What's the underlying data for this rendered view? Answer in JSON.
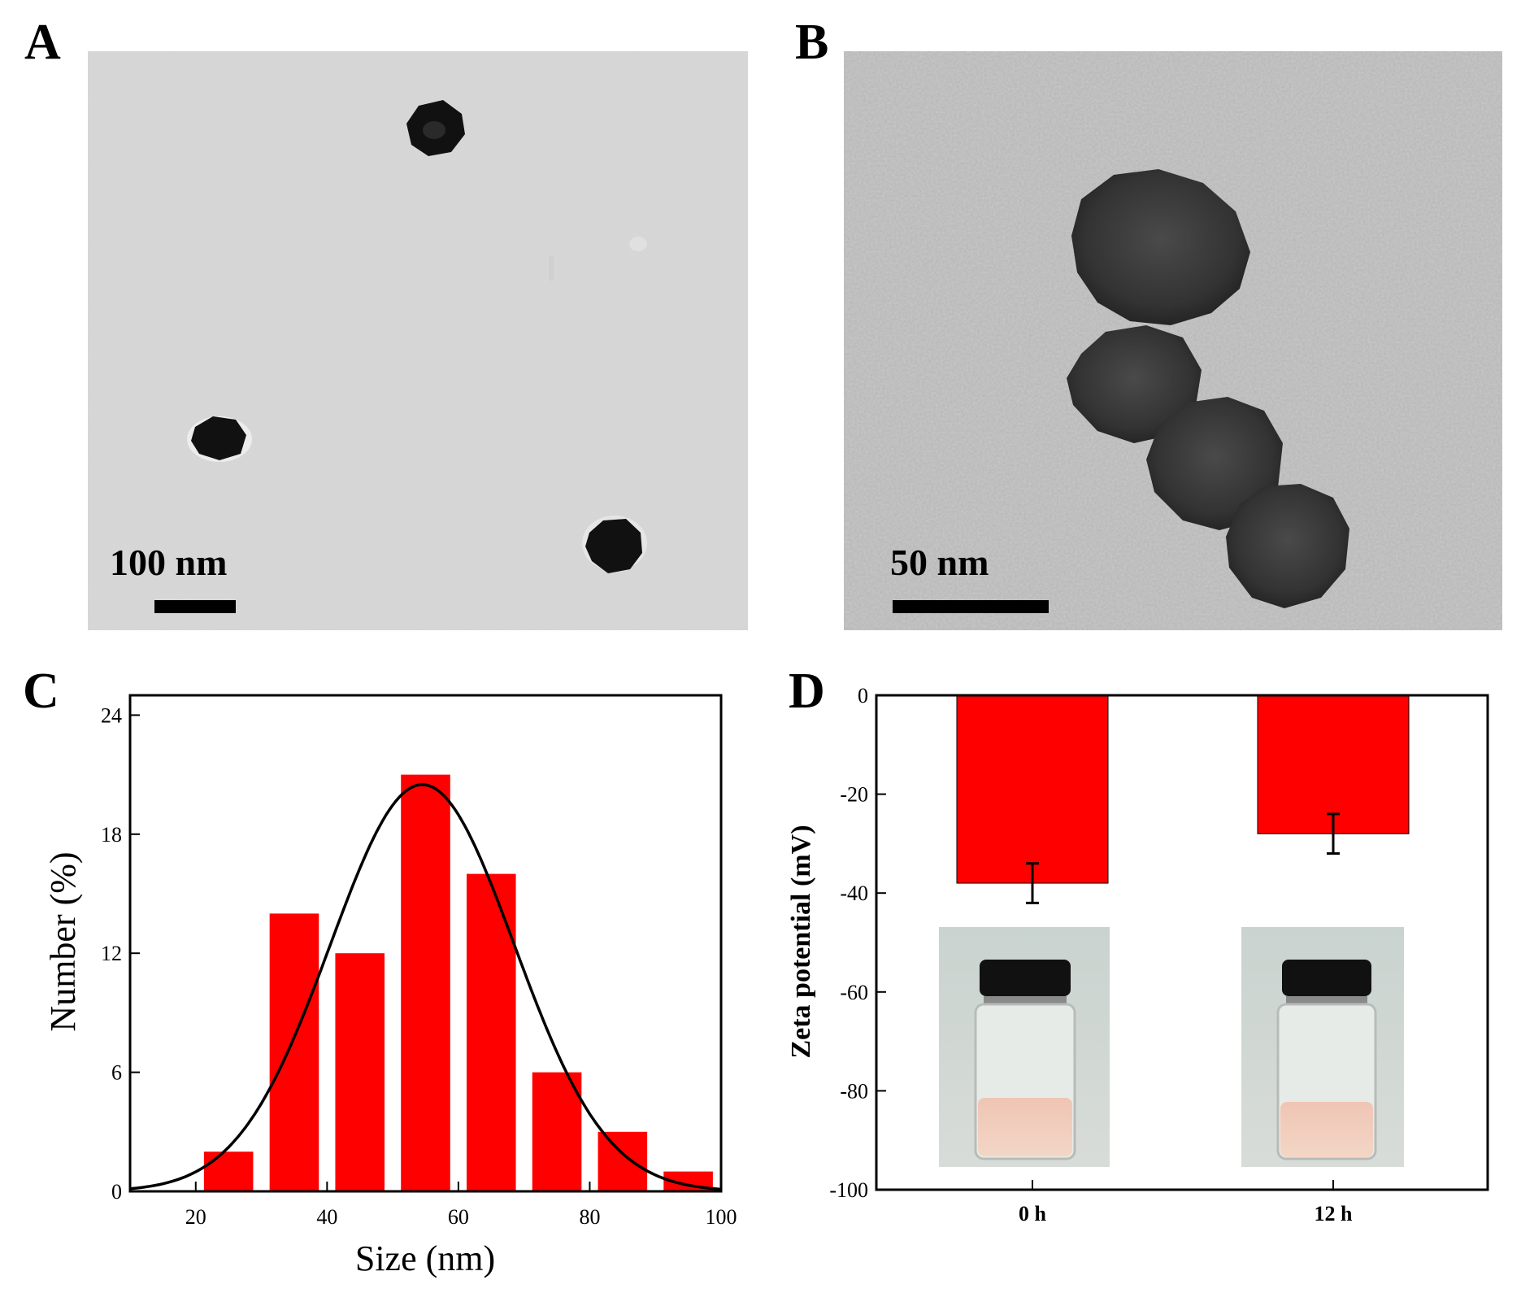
{
  "panels": {
    "A": {
      "letter": "A",
      "scale_bar_label": "100 nm"
    },
    "B": {
      "letter": "B",
      "scale_bar_label": "50 nm"
    },
    "C": {
      "letter": "C"
    },
    "D": {
      "letter": "D"
    }
  },
  "colors": {
    "bar_fill": "#ff0000",
    "curve": "#000000",
    "tem_background_A": "#d8d8d8",
    "tem_background_B": "#c4c4c4"
  },
  "chart_data": [
    {
      "panel": "C",
      "type": "bar",
      "x": [
        25,
        35,
        45,
        55,
        65,
        75,
        85,
        95
      ],
      "values": [
        2,
        14,
        12,
        21,
        16,
        6,
        3,
        1
      ],
      "bin_width": 7.5,
      "fit_curve": {
        "type": "gaussian",
        "mean": 54.5,
        "sigma": 14,
        "peak": 20.5
      },
      "xlabel": "Size (nm)",
      "ylabel": "Number (%)",
      "xlim": [
        10,
        100
      ],
      "ylim": [
        0,
        25
      ],
      "xticks": [
        "20",
        "40",
        "60",
        "80",
        "100"
      ],
      "yticks": [
        "0",
        "6",
        "12",
        "18",
        "24"
      ]
    },
    {
      "panel": "D",
      "type": "bar",
      "categories": [
        "0 h",
        "12 h"
      ],
      "values": [
        -38,
        -28
      ],
      "errors": [
        4,
        4
      ],
      "ylabel": "Zeta potential (mV)",
      "ylim": [
        -100,
        0
      ],
      "yticks": [
        "0",
        "-20",
        "-40",
        "-60",
        "-80",
        "-100"
      ]
    }
  ]
}
